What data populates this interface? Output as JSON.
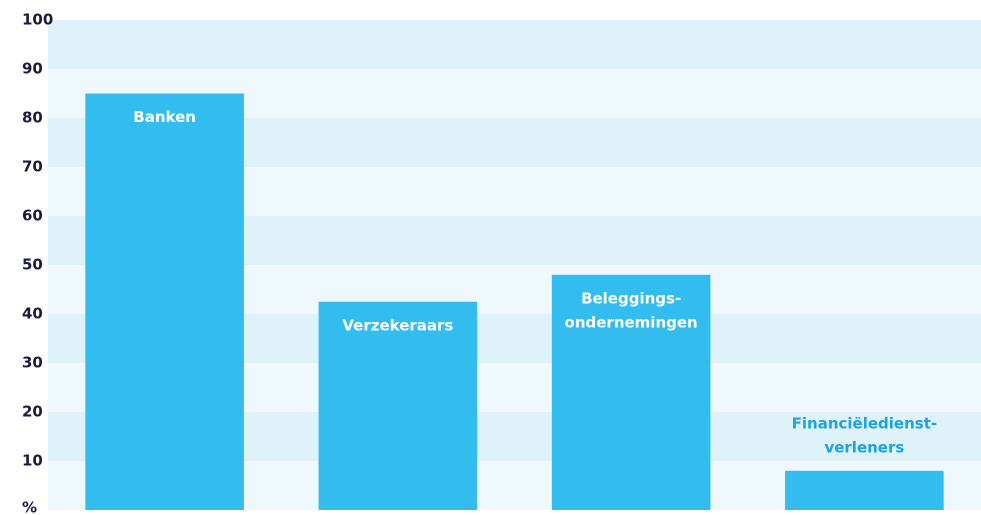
{
  "chart_data": {
    "type": "bar",
    "categories": [
      [
        "Banken"
      ],
      [
        "Verzekeraars"
      ],
      [
        "Beleggings-",
        "ondernemingen"
      ],
      [
        "Financiëledienst-",
        "verleners"
      ]
    ],
    "values": [
      85,
      42.5,
      48,
      8
    ],
    "color": "#33bdef",
    "ylim": [
      0,
      100
    ],
    "yticks": [
      {
        "value": 0,
        "label": "%"
      },
      10,
      20,
      30,
      40,
      50,
      60,
      70,
      80,
      90,
      100
    ]
  }
}
